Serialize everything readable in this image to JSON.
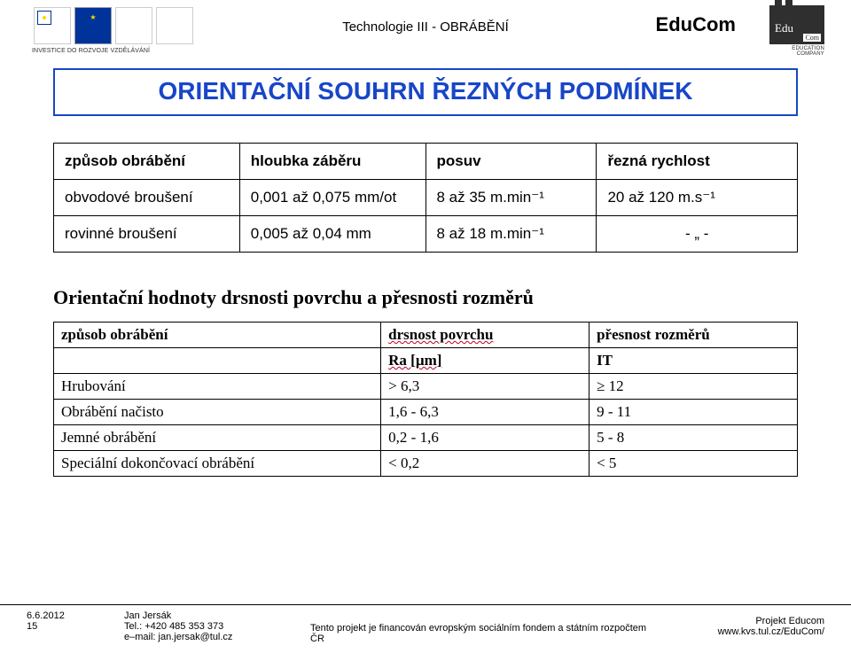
{
  "header": {
    "center": "Technologie III - OBRÁBĚNÍ",
    "right": "EduCom",
    "logo_label": "INVESTICE DO ROZVOJE VZDĚLÁVÁNÍ",
    "edu_txt": "Edu",
    "edu_om": "Com",
    "edu_sub": "EDUCATION COMPANY"
  },
  "title": "ORIENTAČNÍ SOUHRN ŘEZNÝCH PODMÍNEK",
  "table1": {
    "headers": [
      "způsob obrábění",
      "hloubka záběru",
      "posuv",
      "řezná rychlost"
    ],
    "rows": [
      [
        "obvodové broušení",
        "0,001 až 0,075 mm/ot",
        "8 až 35 m.min⁻¹",
        "20 až 120 m.s⁻¹"
      ],
      [
        "rovinné broušení",
        "0,005 až 0,04 mm",
        "8 až 18 m.min⁻¹",
        "- „ -"
      ]
    ]
  },
  "heading2": "Orientační hodnoty drsnosti povrchu a přesnosti rozměrů",
  "table2": {
    "head_r1": [
      "způsob obrábění",
      "drsnost povrchu",
      "přesnost rozměrů"
    ],
    "head_r2": [
      "",
      "Ra [µm]",
      "IT"
    ],
    "rows": [
      [
        "Hrubování",
        "> 6,3",
        "≥ 12"
      ],
      [
        "Obrábění načisto",
        "1,6 - 6,3",
        "9 - 11"
      ],
      [
        "Jemné obrábění",
        "0,2 - 1,6",
        "5 - 8"
      ],
      [
        "Speciální dokončovací obrábění",
        "< 0,2",
        "< 5"
      ]
    ]
  },
  "footer": {
    "date": "6.6.2012",
    "page": "15",
    "author_name": "Jan Jersák",
    "author_tel": "Tel.: +420 485 353 373",
    "author_mail": "e–mail: jan.jersak@tul.cz",
    "center": "Tento projekt je financován evropským sociálním fondem a státním rozpočtem ČR",
    "right1": "Projekt Educom",
    "right2": "www.kvs.tul.cz/EduCom/"
  }
}
